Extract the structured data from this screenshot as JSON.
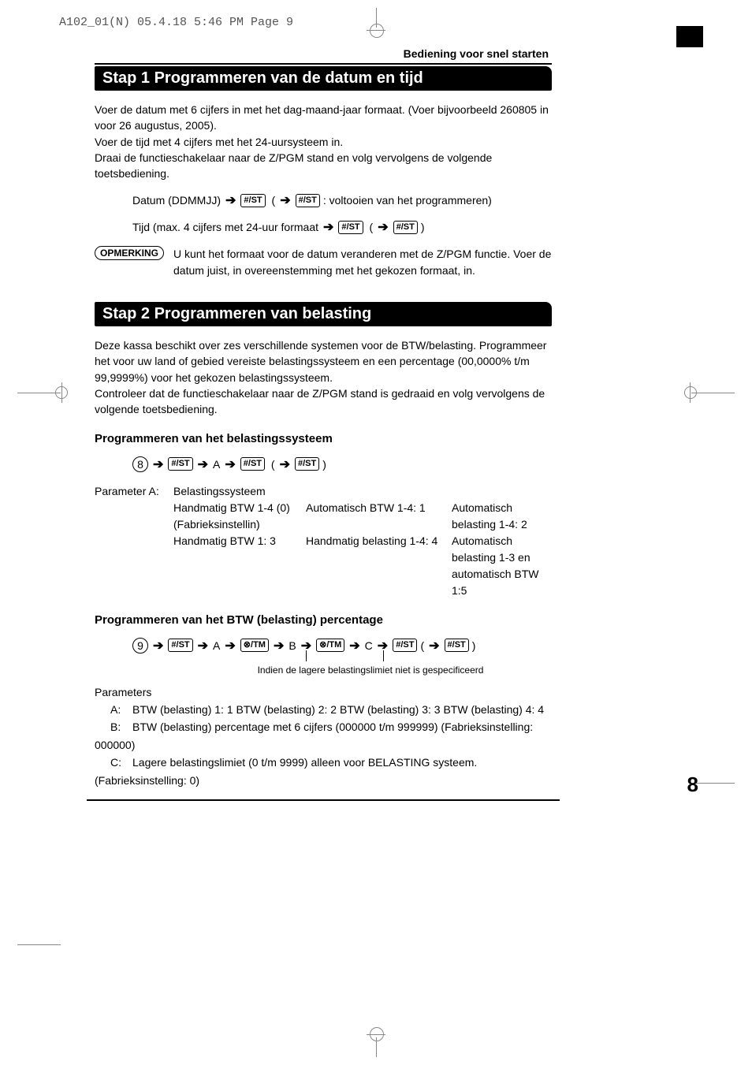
{
  "print_header": "A102_01(N)  05.4.18 5:46 PM  Page 9",
  "section_label": "Bediening voor snel starten",
  "step1": {
    "title": "Stap 1  Programmeren van de datum en tijd",
    "para": "Voer de datum met 6 cijfers in met het dag-maand-jaar formaat. (Voer bijvoorbeeld 260805 in voor 26 augustus, 2005).\nVoer de tijd met 4 cijfers met het 24-uursysteem in.\nDraai de functieschakelaar naar de Z/PGM stand en volg vervolgens de volgende toetsbediening.",
    "date_label": "Datum (DDMMJJ)",
    "date_suffix": ": voltooien van het programmeren)",
    "time_label": "Tijd (max. 4 cijfers met 24-uur formaat",
    "note_badge": "OPMERKING",
    "note_text": "U kunt het formaat voor de datum veranderen met de Z/PGM functie. Voer de datum juist, in overeenstemming met het gekozen formaat, in."
  },
  "step2": {
    "title": "Stap 2  Programmeren van belasting",
    "para": "Deze kassa beschikt over zes verschillende systemen voor de BTW/belasting. Programmeer het voor uw land of gebied vereiste belastingssysteem en een percentage (00,0000% t/m 99,9999%) voor het gekozen belastingssysteem.\nControleer dat de functieschakelaar naar de Z/PGM stand is gedraaid en volg vervolgens de volgende toetsbediening.",
    "sub1": "Programmeren van het belastingssysteem",
    "circ1": "8",
    "paramA_label": "Parameter A:",
    "paramA_title": "Belastingssysteem",
    "grid": {
      "r1c2": "Handmatig BTW 1-4 (0) (Fabrieksinstellin)",
      "r1c3": "Automatisch BTW 1-4: 1",
      "r1c4": "Automatisch belasting 1-4: 2",
      "r2c2": "Handmatig BTW 1: 3",
      "r2c3": "Handmatig belasting 1-4: 4",
      "r2c4": "Automatisch belasting 1-3 en automatisch BTW 1:5"
    },
    "sub2": "Programmeren van het BTW (belasting) percentage",
    "circ2": "9",
    "footnote": "Indien de lagere belastingslimiet niet is gespecificeerd",
    "params_heading": "Parameters",
    "pA": "BTW (belasting) 1: 1    BTW (belasting) 2: 2    BTW (belasting) 3: 3   BTW (belasting) 4: 4",
    "pB": "BTW (belasting) percentage met 6 cijfers (000000 t/m 999999) (Fabrieksinstelling: 000000)",
    "pC": "Lagere belastingslimiet (0 t/m 9999) alleen voor BELASTING systeem. (Fabrieksinstelling: 0)"
  },
  "keys": {
    "st": "#/ST",
    "tm": "⊗/TM"
  },
  "page_number": "8"
}
